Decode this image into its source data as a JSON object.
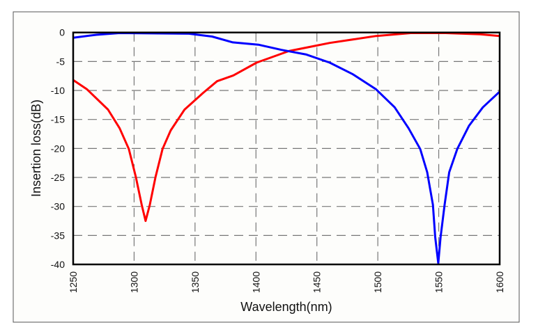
{
  "chart_data": {
    "type": "line",
    "title": "",
    "xlabel": "Wavelength(nm)",
    "ylabel": "Insertion loss(dB)",
    "xlim": [
      1250,
      1600
    ],
    "ylim": [
      -40,
      0
    ],
    "xticks": [
      1250,
      1300,
      1350,
      1400,
      1450,
      1500,
      1550,
      1600
    ],
    "yticks": [
      0,
      -5,
      -10,
      -15,
      -20,
      -25,
      -30,
      -35,
      -40
    ],
    "xtick_labels": [
      "1250",
      "1300",
      "1350",
      "1400",
      "1450",
      "1500",
      "1550",
      "1600"
    ],
    "ytick_labels": [
      "0",
      "-5",
      "-10",
      "-15",
      "-20",
      "-25",
      "-30",
      "-35",
      "-40"
    ],
    "grid": true,
    "grid_style": "dashed",
    "legend": "none",
    "series": [
      {
        "color": "#ff0000",
        "x": [
          1250,
          1261.4,
          1278.6,
          1288.1,
          1295.7,
          1301.4,
          1306.2,
          1309.4,
          1312.9,
          1317.6,
          1323.3,
          1330,
          1341.4,
          1356.7,
          1368.1,
          1381.4,
          1400.5,
          1427,
          1441.4,
          1460.5,
          1498.6,
          1527,
          1555.7,
          1584,
          1600
        ],
        "y": [
          -8.2,
          -9.8,
          -13.3,
          -16.5,
          -20.1,
          -24.9,
          -29.7,
          -32.5,
          -29.7,
          -24.9,
          -20.1,
          -16.9,
          -13.3,
          -10.4,
          -8.4,
          -7.4,
          -5.2,
          -3.2,
          -2.6,
          -1.8,
          -0.6,
          -0.1,
          -0.1,
          -0.3,
          -0.6
        ]
      },
      {
        "color": "#0000ff",
        "x": [
          1250,
          1269,
          1288,
          1345,
          1364,
          1381,
          1402,
          1421,
          1441.4,
          1460.5,
          1479.5,
          1498.6,
          1513.8,
          1525.2,
          1534.8,
          1540.5,
          1545.2,
          1547.1,
          1549.6,
          1551.5,
          1554.8,
          1558.6,
          1565.2,
          1574.8,
          1586.2,
          1600
        ],
        "y": [
          -0.9,
          -0.4,
          -0.1,
          -0.2,
          -0.7,
          -1.7,
          -2.1,
          -3.0,
          -3.8,
          -5.2,
          -7.2,
          -9.8,
          -12.9,
          -16.5,
          -20.1,
          -24.1,
          -29.7,
          -35.3,
          -39.8,
          -35.3,
          -29.7,
          -24.1,
          -20.1,
          -16.1,
          -12.9,
          -10.2
        ]
      }
    ]
  }
}
